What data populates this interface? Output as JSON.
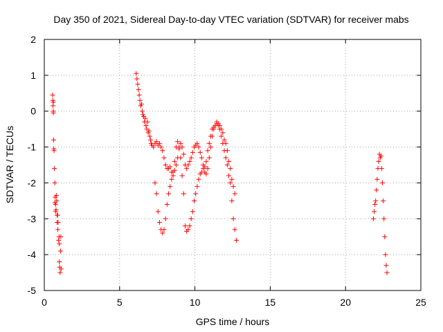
{
  "chart_data": {
    "type": "scatter",
    "title": "Day 350 of 2021, Sidereal Day-to-day VTEC variation (SDTVAR) for receiver mabs",
    "xlabel": "GPS time / hours",
    "ylabel": "SDTVAR / TECUs",
    "xlim": [
      0,
      25
    ],
    "ylim": [
      -5,
      2
    ],
    "xticks": [
      0,
      5,
      10,
      15,
      20,
      25
    ],
    "yticks": [
      -5,
      -4,
      -3,
      -2,
      -1,
      0,
      1,
      2
    ],
    "grid": true,
    "marker": "plus",
    "point_color": "#ff0000",
    "series": [
      {
        "points": [
          [
            0.55,
            0.45
          ],
          [
            0.57,
            0.3
          ],
          [
            0.58,
            0.15
          ],
          [
            0.6,
            0.0
          ],
          [
            0.6,
            -0.05
          ],
          [
            0.6,
            0.25
          ],
          [
            0.62,
            -0.8
          ],
          [
            0.63,
            -1.05
          ],
          [
            0.65,
            -1.1
          ],
          [
            0.67,
            -1.6
          ],
          [
            0.7,
            -2.0
          ],
          [
            0.7,
            -2.55
          ],
          [
            0.72,
            -2.4
          ],
          [
            0.75,
            -2.6
          ],
          [
            0.75,
            -2.8
          ],
          [
            0.78,
            -2.75
          ],
          [
            0.8,
            -2.35
          ],
          [
            0.82,
            -2.5
          ],
          [
            0.85,
            -2.9
          ],
          [
            0.85,
            -3.1
          ],
          [
            0.88,
            -2.9
          ],
          [
            0.9,
            -3.3
          ],
          [
            0.92,
            -3.1
          ],
          [
            0.95,
            -3.6
          ],
          [
            0.98,
            -3.5
          ],
          [
            1.0,
            -3.7
          ],
          [
            1.0,
            -4.2
          ],
          [
            1.02,
            -4.35
          ],
          [
            1.05,
            -4.5
          ],
          [
            1.08,
            -3.9
          ],
          [
            1.1,
            -3.5
          ],
          [
            1.12,
            -4.4
          ],
          [
            6.1,
            1.05
          ],
          [
            6.15,
            0.9
          ],
          [
            6.2,
            0.75
          ],
          [
            6.25,
            0.6
          ],
          [
            6.3,
            0.45
          ],
          [
            6.35,
            0.3
          ],
          [
            6.4,
            0.15
          ],
          [
            6.45,
            0.2
          ],
          [
            6.5,
            0.0
          ],
          [
            6.55,
            -0.1
          ],
          [
            6.6,
            -0.15
          ],
          [
            6.65,
            -0.3
          ],
          [
            6.7,
            -0.2
          ],
          [
            6.75,
            -0.4
          ],
          [
            6.8,
            -0.5
          ],
          [
            6.85,
            -0.3
          ],
          [
            6.9,
            -0.6
          ],
          [
            6.95,
            -0.55
          ],
          [
            7.0,
            -0.7
          ],
          [
            7.05,
            -0.8
          ],
          [
            7.1,
            -0.9
          ],
          [
            7.15,
            -0.95
          ],
          [
            7.25,
            -1.0
          ],
          [
            7.35,
            -0.9
          ],
          [
            7.45,
            -0.85
          ],
          [
            7.55,
            -0.95
          ],
          [
            7.65,
            -0.9
          ],
          [
            7.75,
            -1.0
          ],
          [
            7.85,
            -1.1
          ],
          [
            7.95,
            -1.3
          ],
          [
            8.05,
            -1.5
          ],
          [
            8.15,
            -1.6
          ],
          [
            8.25,
            -1.6
          ],
          [
            8.35,
            -1.55
          ],
          [
            8.45,
            -1.7
          ],
          [
            8.55,
            -1.8
          ],
          [
            8.65,
            -1.65
          ],
          [
            8.75,
            -1.5
          ],
          [
            8.85,
            -1.3
          ],
          [
            8.95,
            -1.05
          ],
          [
            9.05,
            -0.9
          ],
          [
            9.15,
            -1.0
          ],
          [
            9.25,
            -1.2
          ],
          [
            9.35,
            -1.5
          ],
          [
            9.45,
            -1.6
          ],
          [
            9.55,
            -1.5
          ],
          [
            9.65,
            -1.4
          ],
          [
            9.75,
            -1.3
          ],
          [
            9.85,
            -1.15
          ],
          [
            9.95,
            -1.0
          ],
          [
            10.05,
            -0.95
          ],
          [
            10.15,
            -0.9
          ],
          [
            10.25,
            -1.0
          ],
          [
            10.35,
            -1.15
          ],
          [
            10.45,
            -1.3
          ],
          [
            10.55,
            -1.5
          ],
          [
            10.65,
            -1.7
          ],
          [
            10.75,
            -1.75
          ],
          [
            10.85,
            -1.6
          ],
          [
            10.95,
            -1.3
          ],
          [
            11.05,
            -1.0
          ],
          [
            11.15,
            -0.7
          ],
          [
            11.25,
            -0.5
          ],
          [
            11.35,
            -0.4
          ],
          [
            11.45,
            -0.35
          ],
          [
            11.55,
            -0.4
          ],
          [
            11.65,
            -0.5
          ],
          [
            11.75,
            -0.7
          ],
          [
            11.85,
            -0.9
          ],
          [
            11.95,
            -1.1
          ],
          [
            12.05,
            -1.3
          ],
          [
            12.15,
            -1.5
          ],
          [
            12.25,
            -1.8
          ],
          [
            12.35,
            -2.0
          ],
          [
            12.45,
            -2.5
          ],
          [
            12.55,
            -3.0
          ],
          [
            12.65,
            -3.3
          ],
          [
            12.75,
            -3.6
          ],
          [
            7.35,
            -2.0
          ],
          [
            7.45,
            -2.3
          ],
          [
            7.55,
            -2.8
          ],
          [
            7.65,
            -3.1
          ],
          [
            7.75,
            -3.3
          ],
          [
            7.85,
            -3.4
          ],
          [
            7.95,
            -3.3
          ],
          [
            8.05,
            -3.0
          ],
          [
            8.15,
            -2.6
          ],
          [
            8.25,
            -2.3
          ],
          [
            8.35,
            -2.1
          ],
          [
            8.45,
            -1.9
          ],
          [
            8.55,
            -1.7
          ],
          [
            8.65,
            -1.4
          ],
          [
            8.75,
            -1.0
          ],
          [
            8.85,
            -0.85
          ],
          [
            8.95,
            -1.0
          ],
          [
            9.05,
            -1.3
          ],
          [
            9.15,
            -1.8
          ],
          [
            9.25,
            -2.3
          ],
          [
            9.35,
            -3.2
          ],
          [
            9.45,
            -3.35
          ],
          [
            9.55,
            -3.3
          ],
          [
            9.65,
            -3.2
          ],
          [
            9.75,
            -3.0
          ],
          [
            9.85,
            -2.8
          ],
          [
            9.95,
            -2.5
          ],
          [
            10.05,
            -2.3
          ],
          [
            10.15,
            -2.1
          ],
          [
            10.25,
            -1.9
          ],
          [
            10.35,
            -1.75
          ],
          [
            10.45,
            -1.7
          ],
          [
            10.55,
            -1.6
          ],
          [
            10.65,
            -1.55
          ],
          [
            10.75,
            -1.4
          ],
          [
            10.85,
            -1.1
          ],
          [
            10.95,
            -0.9
          ],
          [
            11.05,
            -0.7
          ],
          [
            11.15,
            -0.5
          ],
          [
            11.25,
            -0.45
          ],
          [
            11.35,
            -0.4
          ],
          [
            11.45,
            -0.3
          ],
          [
            11.55,
            -0.35
          ],
          [
            11.65,
            -0.4
          ],
          [
            11.75,
            -0.5
          ],
          [
            11.85,
            -0.6
          ],
          [
            11.95,
            -0.8
          ],
          [
            12.05,
            -0.9
          ],
          [
            12.15,
            -1.1
          ],
          [
            12.25,
            -1.4
          ],
          [
            12.35,
            -1.6
          ],
          [
            12.45,
            -1.9
          ],
          [
            12.55,
            -2.1
          ],
          [
            12.65,
            -2.3
          ],
          [
            21.85,
            -3.0
          ],
          [
            21.9,
            -2.8
          ],
          [
            21.95,
            -2.6
          ],
          [
            22.0,
            -2.5
          ],
          [
            22.05,
            -2.2
          ],
          [
            22.1,
            -1.9
          ],
          [
            22.15,
            -1.6
          ],
          [
            22.2,
            -1.4
          ],
          [
            22.25,
            -1.2
          ],
          [
            22.3,
            -1.3
          ],
          [
            22.35,
            -1.25
          ],
          [
            22.4,
            -1.6
          ],
          [
            22.45,
            -2.0
          ],
          [
            22.5,
            -2.5
          ],
          [
            22.55,
            -3.0
          ],
          [
            22.6,
            -3.5
          ],
          [
            22.65,
            -4.0
          ],
          [
            22.7,
            -4.3
          ],
          [
            22.75,
            -4.5
          ]
        ]
      }
    ]
  }
}
